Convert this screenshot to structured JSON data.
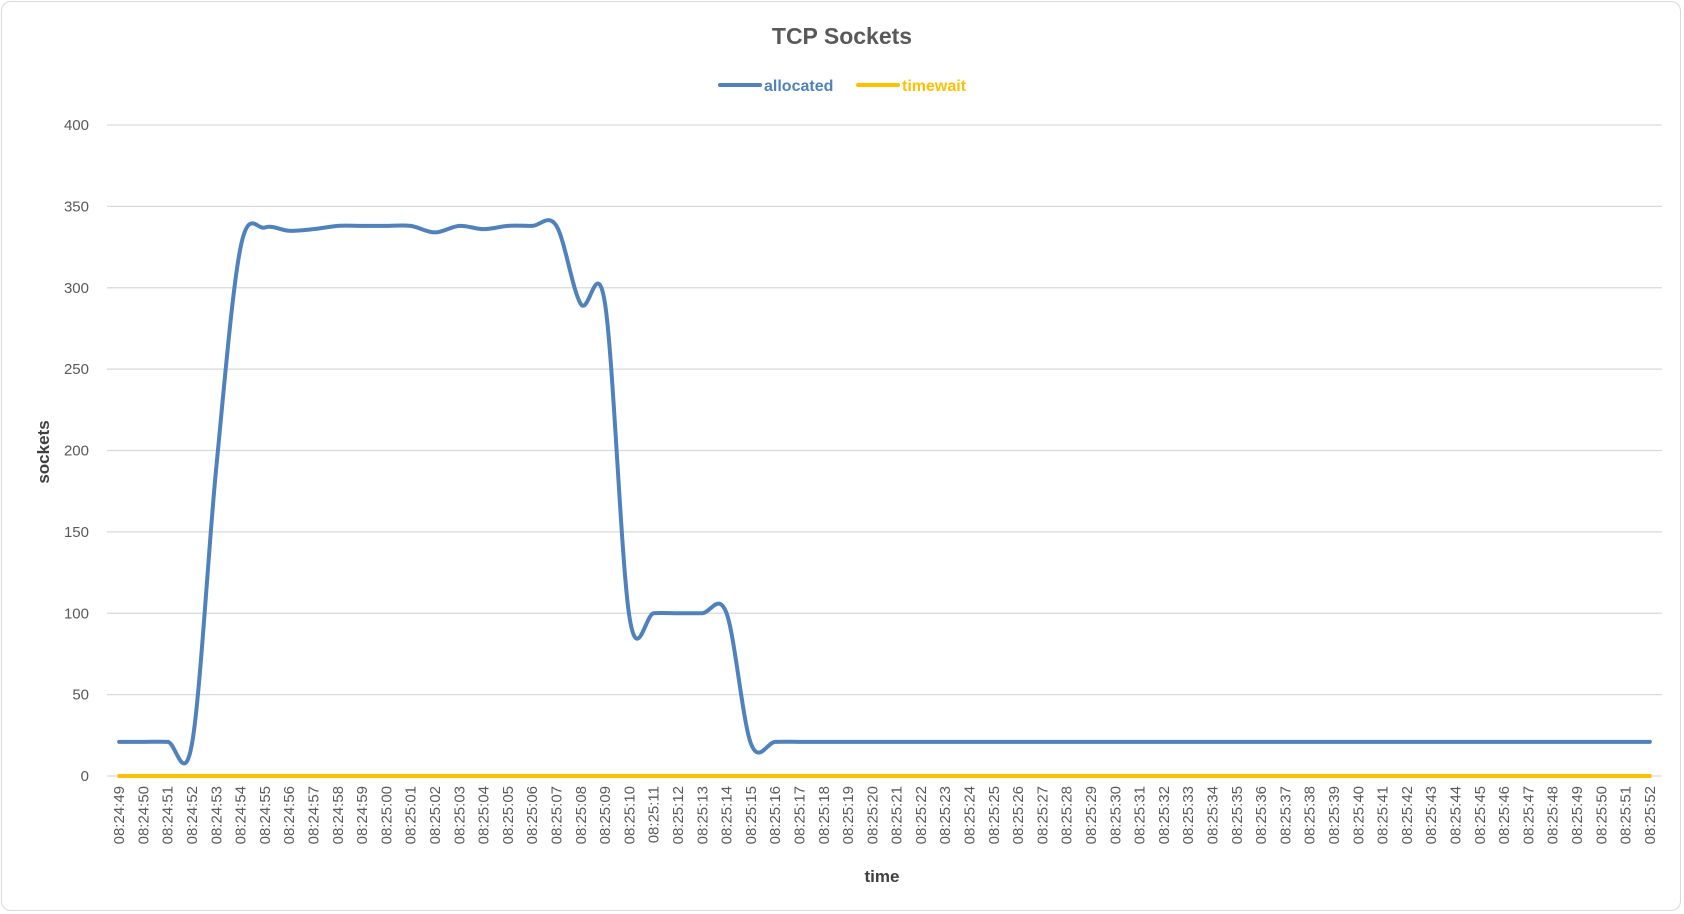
{
  "chart_data": {
    "type": "line",
    "title": "TCP Sockets",
    "xlabel": "time",
    "ylabel": "sockets",
    "ylim": [
      0,
      400
    ],
    "yticks": [
      0,
      50,
      100,
      150,
      200,
      250,
      300,
      350,
      400
    ],
    "grid": true,
    "legend_position": "top",
    "x": [
      "08:24:49",
      "08:24:50",
      "08:24:51",
      "08:24:52",
      "08:24:53",
      "08:24:54",
      "08:24:55",
      "08:24:56",
      "08:24:57",
      "08:24:58",
      "08:24:59",
      "08:25:00",
      "08:25:01",
      "08:25:02",
      "08:25:03",
      "08:25:04",
      "08:25:05",
      "08:25:06",
      "08:25:07",
      "08:25:08",
      "08:25:09",
      "08:25:10",
      "08:25:11",
      "08:25:12",
      "08:25:13",
      "08:25:14",
      "08:25:15",
      "08:25:16",
      "08:25:17",
      "08:25:18",
      "08:25:19",
      "08:25:20",
      "08:25:21",
      "08:25:22",
      "08:25:23",
      "08:25:24",
      "08:25:25",
      "08:25:26",
      "08:25:27",
      "08:25:28",
      "08:25:29",
      "08:25:30",
      "08:25:31",
      "08:25:32",
      "08:25:33",
      "08:25:34",
      "08:25:35",
      "08:25:36",
      "08:25:37",
      "08:25:38",
      "08:25:39",
      "08:25:40",
      "08:25:41",
      "08:25:42",
      "08:25:43",
      "08:25:44",
      "08:25:45",
      "08:25:46",
      "08:25:47",
      "08:25:48",
      "08:25:49",
      "08:25:50",
      "08:25:51",
      "08:25:52"
    ],
    "series": [
      {
        "name": "allocated",
        "color": "#4f81bd",
        "values": [
          21,
          21,
          21,
          20,
          190,
          325,
          337,
          335,
          336,
          338,
          338,
          338,
          338,
          334,
          338,
          336,
          338,
          338,
          338,
          290,
          290,
          98,
          100,
          100,
          100,
          100,
          20,
          21,
          21,
          21,
          21,
          21,
          21,
          21,
          21,
          21,
          21,
          21,
          21,
          21,
          21,
          21,
          21,
          21,
          21,
          21,
          21,
          21,
          21,
          21,
          21,
          21,
          21,
          21,
          21,
          21,
          21,
          21,
          21,
          21,
          21,
          21,
          21,
          21
        ]
      },
      {
        "name": "timewait",
        "color": "#ffc000",
        "values": [
          0,
          0,
          0,
          0,
          0,
          0,
          0,
          0,
          0,
          0,
          0,
          0,
          0,
          0,
          0,
          0,
          0,
          0,
          0,
          0,
          0,
          0,
          0,
          0,
          0,
          0,
          0,
          0,
          0,
          0,
          0,
          0,
          0,
          0,
          0,
          0,
          0,
          0,
          0,
          0,
          0,
          0,
          0,
          0,
          0,
          0,
          0,
          0,
          0,
          0,
          0,
          0,
          0,
          0,
          0,
          0,
          0,
          0,
          0,
          0,
          0,
          0,
          0,
          0
        ]
      }
    ]
  }
}
